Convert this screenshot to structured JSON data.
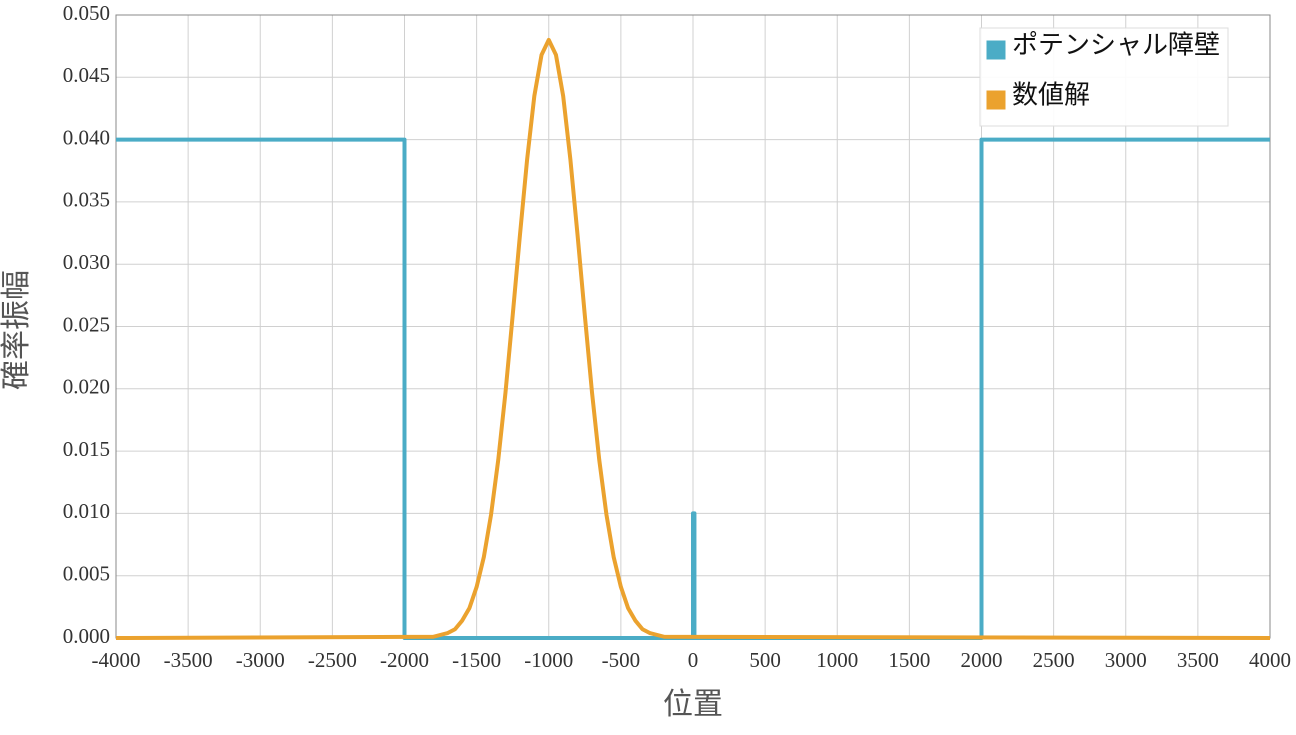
{
  "chart_data": {
    "type": "line",
    "xlabel": "位置",
    "ylabel": "確率振幅",
    "xlim": [
      -4000,
      4000
    ],
    "ylim": [
      0,
      0.05
    ],
    "xticks": [
      -4000,
      -3500,
      -3000,
      -2500,
      -2000,
      -1500,
      -1000,
      -500,
      0,
      500,
      1000,
      1500,
      2000,
      2500,
      3000,
      3500,
      4000
    ],
    "yticks": [
      {
        "value": 0,
        "label": "0.000"
      },
      {
        "value": 0.005,
        "label": "0.005"
      },
      {
        "value": 0.01,
        "label": "0.010"
      },
      {
        "value": 0.015,
        "label": "0.015"
      },
      {
        "value": 0.02,
        "label": "0.020"
      },
      {
        "value": 0.025,
        "label": "0.025"
      },
      {
        "value": 0.03,
        "label": "0.030"
      },
      {
        "value": 0.035,
        "label": "0.035"
      },
      {
        "value": 0.04,
        "label": "0.040"
      },
      {
        "value": 0.045,
        "label": "0.045"
      },
      {
        "value": 0.05,
        "label": "0.050"
      }
    ],
    "grid": true,
    "legend": "upper right",
    "series": [
      {
        "name": "ポテンシャル障壁",
        "color": "#4bacc6",
        "x": [
          -4000,
          -2000,
          -2000,
          0,
          0,
          10,
          10,
          2000,
          2000,
          4000
        ],
        "values": [
          0.04,
          0.04,
          0,
          0,
          0.01,
          0.01,
          0,
          0,
          0.04,
          0.04
        ]
      },
      {
        "name": "数値解",
        "color": "#eba22e",
        "x": [
          -4000,
          -1800,
          -1700,
          -1650,
          -1600,
          -1550,
          -1500,
          -1450,
          -1400,
          -1350,
          -1300,
          -1250,
          -1200,
          -1150,
          -1100,
          -1050,
          -1000,
          -950,
          -900,
          -850,
          -800,
          -750,
          -700,
          -650,
          -600,
          -550,
          -500,
          -450,
          -400,
          -350,
          -300,
          -200,
          4000
        ],
        "values": [
          0,
          0.0001,
          0.0004,
          0.0007,
          0.0014,
          0.0024,
          0.0041,
          0.0065,
          0.0099,
          0.0143,
          0.0197,
          0.0259,
          0.0323,
          0.0384,
          0.0435,
          0.0468,
          0.048,
          0.0468,
          0.0435,
          0.0384,
          0.0323,
          0.0259,
          0.0197,
          0.0143,
          0.0099,
          0.0065,
          0.0041,
          0.0024,
          0.0014,
          0.0007,
          0.0004,
          0.0001,
          0
        ]
      }
    ]
  }
}
